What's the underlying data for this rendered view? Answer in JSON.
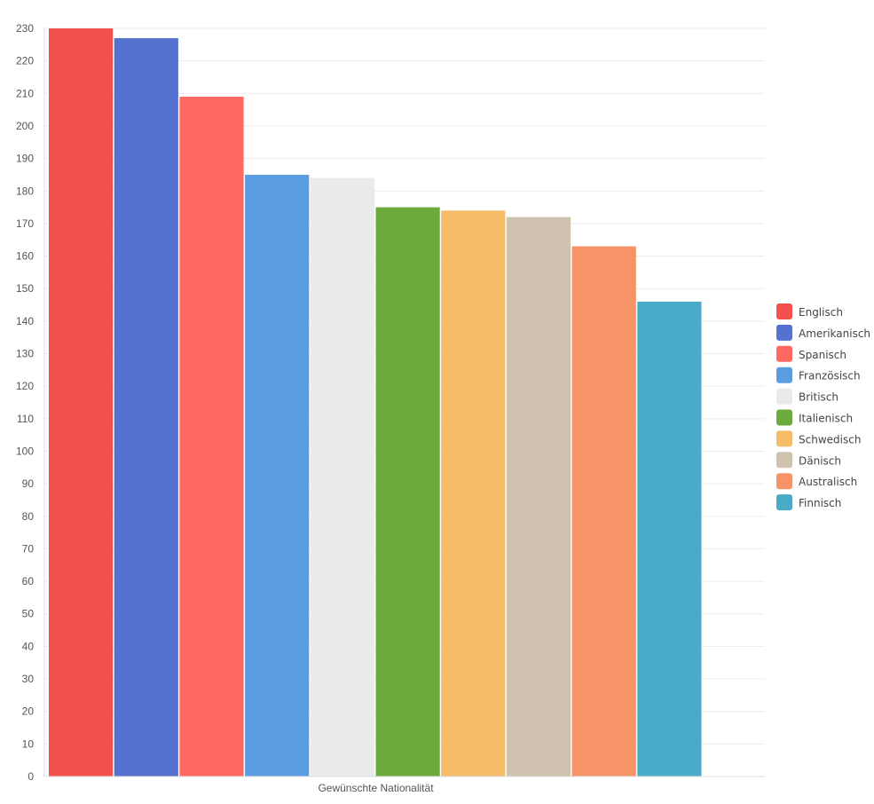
{
  "chart_data": {
    "type": "bar",
    "title": "",
    "xlabel": "Gewünschte Nationalität",
    "ylabel": "",
    "ylim": [
      0,
      230
    ],
    "ytick_step": 10,
    "grid": true,
    "legend_position": "right",
    "categories": [
      "Gewünschte Nationalität"
    ],
    "series": [
      {
        "name": "Englisch",
        "values": [
          230
        ],
        "color": "#f2514d"
      },
      {
        "name": "Amerikanisch",
        "values": [
          227
        ],
        "color": "#5672d1"
      },
      {
        "name": "Spanisch",
        "values": [
          209
        ],
        "color": "#ff6961"
      },
      {
        "name": "Französisch",
        "values": [
          185
        ],
        "color": "#5a9ee1"
      },
      {
        "name": "Britisch",
        "values": [
          184
        ],
        "color": "#eaeaea"
      },
      {
        "name": "Italienisch",
        "values": [
          175
        ],
        "color": "#6daa3d"
      },
      {
        "name": "Schwedisch",
        "values": [
          174
        ],
        "color": "#f5bd69"
      },
      {
        "name": "Dänisch",
        "values": [
          172
        ],
        "color": "#cfc3af"
      },
      {
        "name": "Australisch",
        "values": [
          163
        ],
        "color": "#f79467"
      },
      {
        "name": "Finnisch",
        "values": [
          146
        ],
        "color": "#4aabc8"
      }
    ]
  }
}
